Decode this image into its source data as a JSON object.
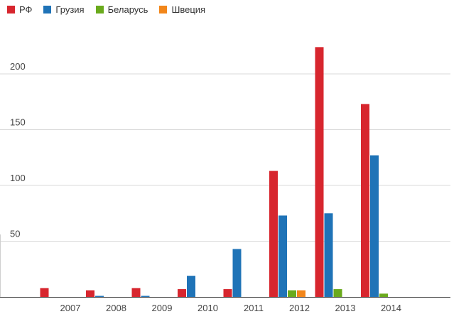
{
  "chart_data": {
    "type": "bar",
    "categories": [
      "2007",
      "2008",
      "2009",
      "2010",
      "2011",
      "2012",
      "2013",
      "2014"
    ],
    "series": [
      {
        "name": "РФ",
        "color": "#d7262e",
        "values": [
          8,
          6,
          8,
          7,
          7,
          113,
          224,
          173
        ]
      },
      {
        "name": "Грузия",
        "color": "#1f73b7",
        "values": [
          0,
          1,
          1,
          19,
          43,
          73,
          75,
          127
        ]
      },
      {
        "name": "Беларусь",
        "color": "#6aaa1c",
        "values": [
          0,
          0,
          0,
          0,
          0,
          6,
          7,
          3
        ]
      },
      {
        "name": "Швеция",
        "color": "#f2861a",
        "values": [
          0,
          0,
          0,
          0,
          0,
          6,
          0,
          0
        ]
      }
    ],
    "yticks": [
      50,
      100,
      150,
      200
    ],
    "ylim": [
      0,
      250
    ],
    "grid": true,
    "legend_position": "top-left",
    "title": "",
    "xlabel": "",
    "ylabel": ""
  }
}
